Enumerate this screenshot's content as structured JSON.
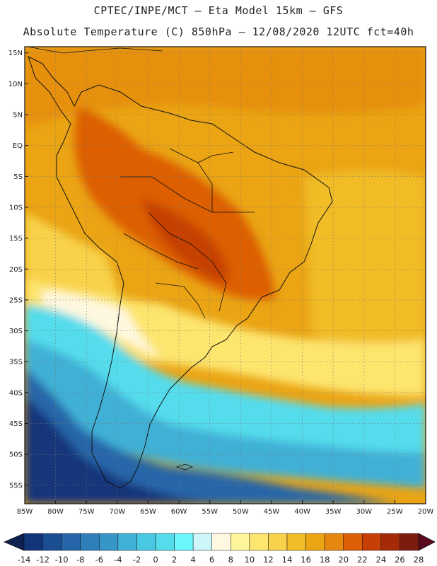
{
  "header": {
    "line1": "CPTEC/INPE/MCT –  Eta Model 15km – GFS",
    "line2": "Absolute Temperature (C) 850hPa – 12/08/2020 12UTC fct=40h"
  },
  "map": {
    "lat_labels": [
      "15N",
      "10N",
      "5N",
      "EQ",
      "5S",
      "10S",
      "15S",
      "20S",
      "25S",
      "30S",
      "35S",
      "40S",
      "45S",
      "50S",
      "55S"
    ],
    "lon_labels": [
      "85W",
      "80W",
      "75W",
      "70W",
      "65W",
      "60W",
      "55W",
      "50W",
      "45W",
      "40W",
      "35W",
      "30W",
      "25W",
      "20W"
    ],
    "lat_range": [
      -58,
      16
    ],
    "lon_range": [
      -85,
      -20
    ],
    "grid": true
  },
  "colorbar": {
    "labels": [
      "-14",
      "-12",
      "-10",
      "-8",
      "-6",
      "-4",
      "-2",
      "0",
      "2",
      "4",
      "6",
      "8",
      "10",
      "12",
      "14",
      "16",
      "18",
      "20",
      "22",
      "24",
      "26",
      "28"
    ],
    "colors": [
      "#12357a",
      "#1a4d92",
      "#2666a8",
      "#2f7fba",
      "#3796c8",
      "#3fb0d6",
      "#48c8e2",
      "#55dcec",
      "#6af6fb",
      "#cdf6fb",
      "#fff8e0",
      "#fff59a",
      "#fde56e",
      "#f8d24a",
      "#f1bc28",
      "#eaa414",
      "#e6870f",
      "#dd5f06",
      "#c63f04",
      "#a52a08",
      "#7c1c0e"
    ],
    "low_arrow_color": "#0e2050",
    "high_arrow_color": "#5a0b1e"
  }
}
